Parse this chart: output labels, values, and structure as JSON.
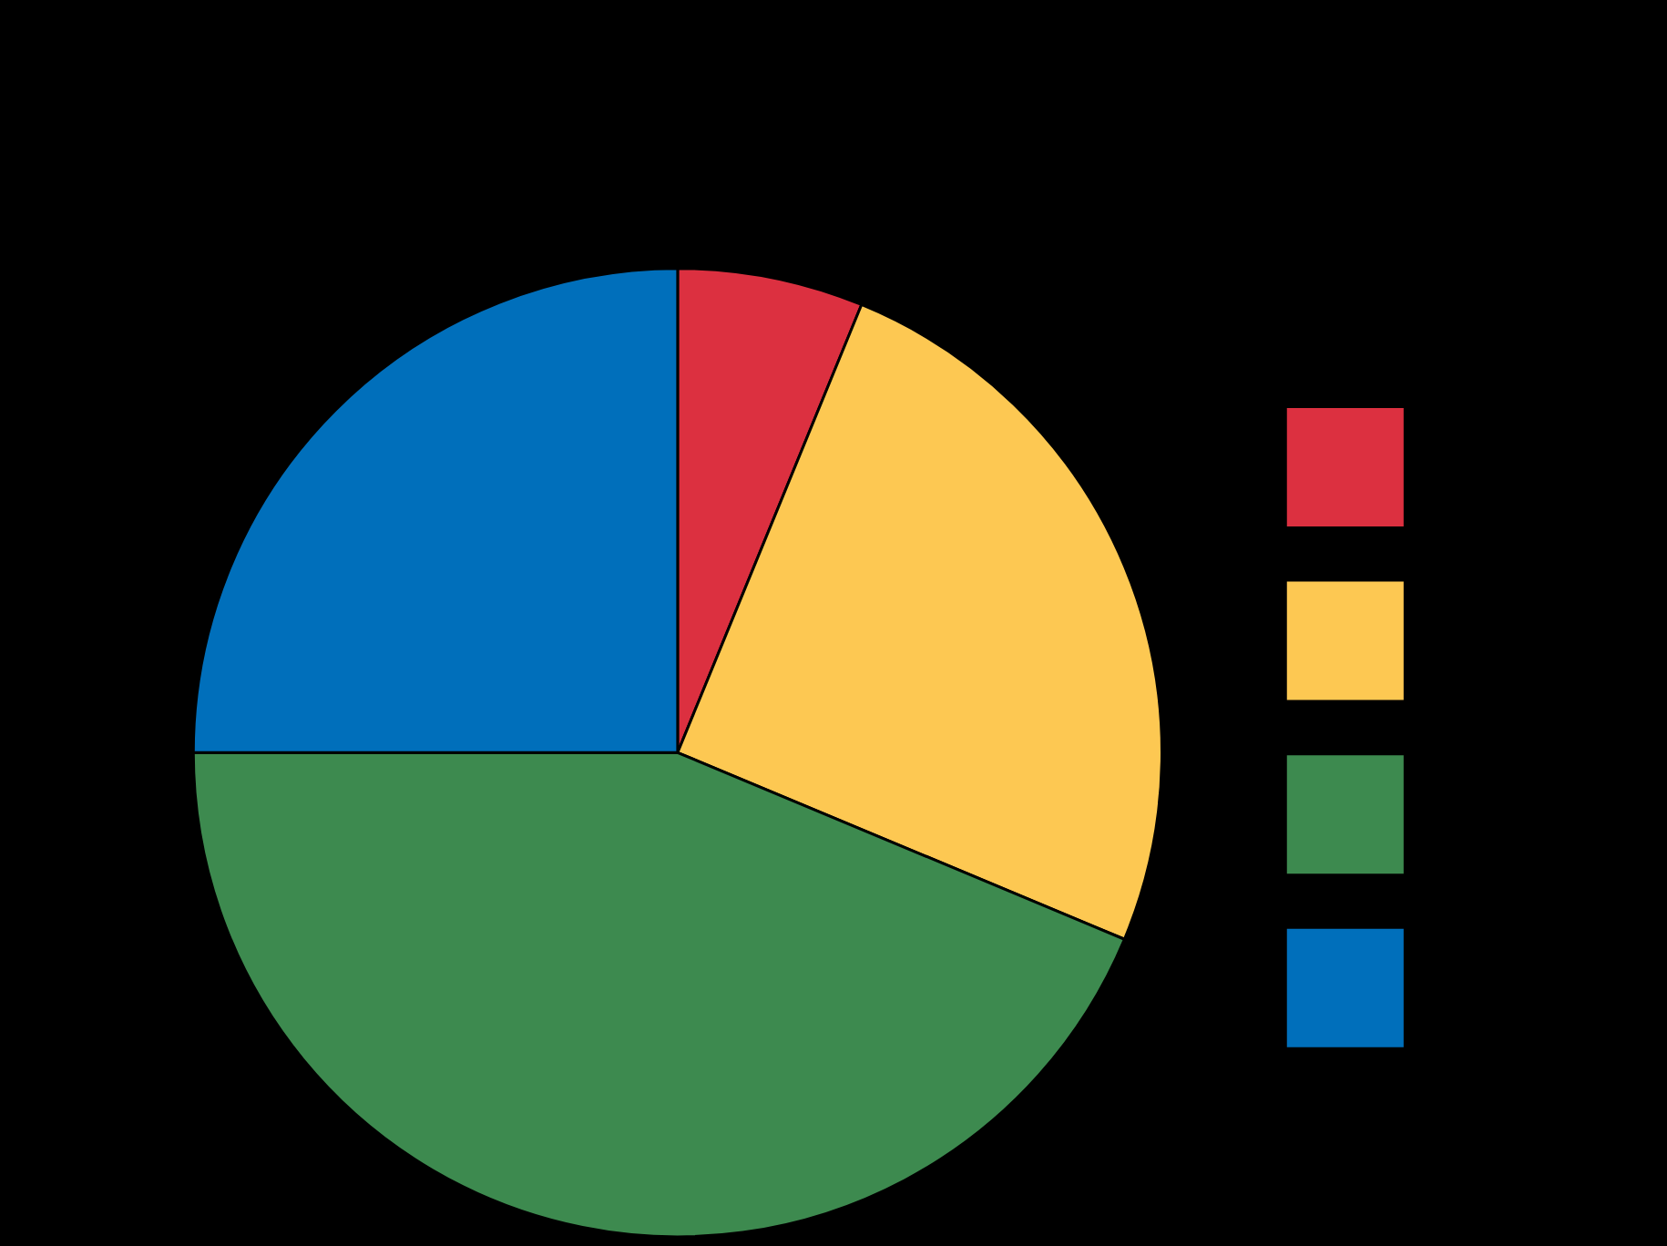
{
  "chart_data": {
    "type": "pie",
    "categories": [
      null,
      null,
      null,
      null
    ],
    "values": [
      6.2,
      25.1,
      43.7,
      25
    ],
    "colors": [
      "#dc3040",
      "#fdc852",
      "#3d8a4f",
      "#006fbb"
    ]
  }
}
